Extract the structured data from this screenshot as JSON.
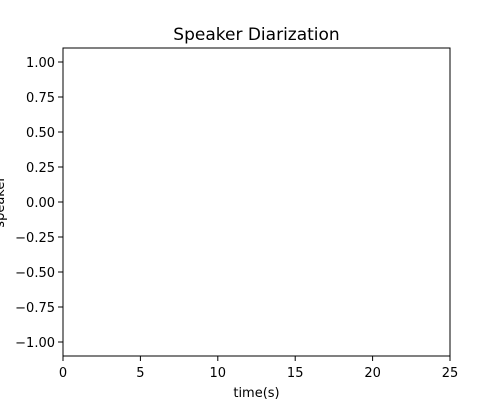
{
  "chart_data": {
    "type": "line",
    "title": "Speaker Diarization",
    "xlabel": "time(s)",
    "ylabel": "speaker",
    "xlim": [
      0,
      25
    ],
    "ylim": [
      -1.1,
      1.1
    ],
    "xticks": [
      0,
      5,
      10,
      15,
      20,
      25
    ],
    "xtick_labels": [
      "0",
      "5",
      "10",
      "15",
      "20",
      "25"
    ],
    "yticks": [
      1.0,
      0.75,
      0.5,
      0.25,
      0.0,
      -0.25,
      -0.5,
      -0.75,
      -1.0
    ],
    "ytick_labels": [
      "1.00",
      "0.75",
      "0.50",
      "0.25",
      "0.00",
      "−0.25",
      "−0.50",
      "−0.75",
      "−1.00"
    ],
    "series": [],
    "grid": false,
    "legend": "none"
  }
}
